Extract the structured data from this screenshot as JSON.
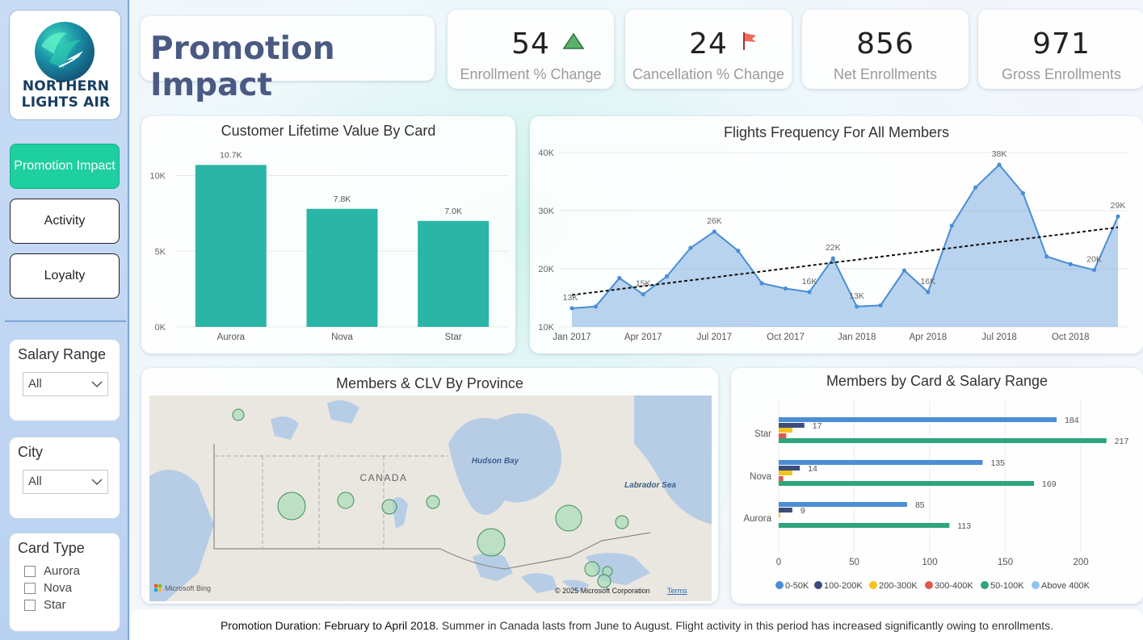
{
  "logo": {
    "line1": "NORTHERN",
    "line2": "LIGHTS AIR"
  },
  "nav": [
    {
      "label": "Promotion Impact",
      "active": true
    },
    {
      "label": "Activity",
      "active": false
    },
    {
      "label": "Loyalty",
      "active": false
    }
  ],
  "slicers": {
    "salary": {
      "title": "Salary Range",
      "value": "All"
    },
    "city": {
      "title": "City",
      "value": "All"
    },
    "card_type": {
      "title": "Card Type",
      "options": [
        "Aurora",
        "Nova",
        "Star"
      ]
    }
  },
  "page_title": "Promotion Impact",
  "kpis": [
    {
      "value": "54",
      "label": "Enrollment % Change",
      "icon": "triangle-up-icon",
      "icon_color": "#3b9b4f"
    },
    {
      "value": "24",
      "label": "Cancellation % Change",
      "icon": "flag-icon",
      "icon_color": "#e8453c"
    },
    {
      "value": "856",
      "label": "Net Enrollments"
    },
    {
      "value": "971",
      "label": "Gross Enrollments"
    }
  ],
  "clv_chart": {
    "title": "Customer Lifetime Value By Card",
    "chart_data": {
      "type": "bar",
      "categories": [
        "Aurora",
        "Nova",
        "Star"
      ],
      "values": [
        10.7,
        7.8,
        7.0
      ],
      "data_labels": [
        "10.7K",
        "7.8K",
        "7.0K"
      ],
      "y_ticks": [
        "0K",
        "5K",
        "10K"
      ],
      "ylim": [
        0,
        12
      ],
      "color": "#2bb5a6"
    }
  },
  "flights_chart": {
    "title": "Flights Frequency For All Members",
    "chart_data": {
      "type": "area",
      "x_ticks": [
        "Jan 2017",
        "Apr 2017",
        "Jul 2017",
        "Oct 2017",
        "Jan 2018",
        "Apr 2018",
        "Jul 2018",
        "Oct 2018"
      ],
      "y_ticks": [
        "10K",
        "20K",
        "30K",
        "40K"
      ],
      "ylim": [
        10,
        40
      ],
      "values": [
        13.2,
        13.5,
        18.4,
        15.6,
        18.7,
        23.6,
        26.4,
        23.1,
        17.5,
        16.6,
        16.0,
        21.8,
        13.5,
        13.7,
        19.7,
        16.0,
        27.4,
        34.0,
        37.9,
        33.0,
        22.1,
        20.8,
        19.8,
        29.0
      ],
      "point_labels": {
        "0": "13K",
        "3": "15K",
        "6": "26K",
        "10": "16K",
        "11": "22K",
        "12": "13K",
        "15": "16K",
        "18": "38K",
        "22": "20K",
        "23": "29K"
      },
      "trend_line": true,
      "color": "#4a8ed6"
    }
  },
  "map": {
    "title": "Members & CLV By Province",
    "labels": {
      "country": "CANADA",
      "hudson": "Hudson Bay",
      "labrador": "Labrador Sea"
    },
    "credit": "Microsoft Bing",
    "copyright": "© 2025 Microsoft Corporation",
    "terms": "Terms"
  },
  "salary_chart": {
    "title": "Members by Card & Salary Range",
    "chart_data": {
      "type": "bar",
      "orientation": "horizontal",
      "categories": [
        "Star",
        "Nova",
        "Aurora"
      ],
      "series": [
        {
          "name": "0-50K",
          "color": "#4a8ed6",
          "values": [
            184,
            135,
            85
          ],
          "labels": [
            "184",
            "135",
            "85"
          ]
        },
        {
          "name": "100-200K",
          "color": "#3d4d7a",
          "values": [
            17,
            14,
            9
          ],
          "labels": [
            "17",
            "14",
            "9"
          ]
        },
        {
          "name": "200-300K",
          "color": "#f2c31c",
          "values": [
            9,
            9,
            1
          ],
          "labels": [
            "",
            "",
            ""
          ]
        },
        {
          "name": "300-400K",
          "color": "#e0584e",
          "values": [
            5,
            3,
            0
          ],
          "labels": [
            "",
            "",
            ""
          ]
        },
        {
          "name": "50-100K",
          "color": "#2da57b",
          "values": [
            217,
            169,
            113
          ],
          "labels": [
            "217",
            "169",
            "113"
          ]
        },
        {
          "name": "Above 400K",
          "color": "#8fc3ee",
          "values": [
            0,
            0,
            0
          ],
          "labels": [
            "",
            "",
            ""
          ]
        }
      ],
      "x_ticks": [
        "0",
        "50",
        "100",
        "150",
        "200"
      ],
      "xlim": [
        0,
        225
      ]
    }
  },
  "footer": {
    "bold": "Promotion Duration: February to April 2018.",
    "text": " Summer in Canada lasts from June to August. Flight activity in this period has increased significantly owing to enrollments."
  }
}
